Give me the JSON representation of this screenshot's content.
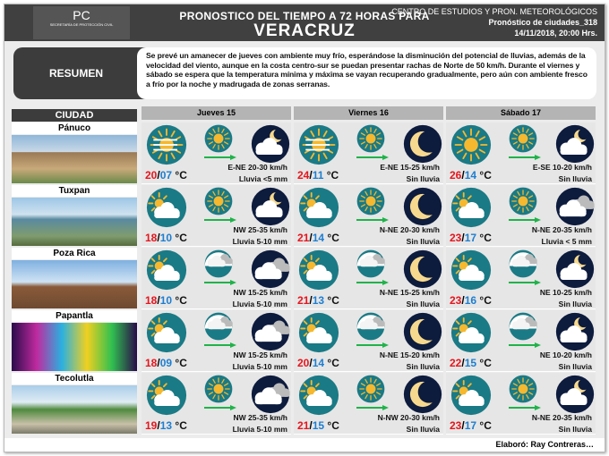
{
  "header": {
    "logo_text": "PC",
    "logo_sub": "SECRETARÍA DE PROTECCIÓN CIVIL",
    "title_line1": "PRONOSTICO DEL TIEMPO A 72 HORAS PARA",
    "title_line2": "VERACRUZ",
    "org": "CENTRO DE ESTUDIOS Y PRON. METEOROLÓGICOS",
    "product": "Pronóstico de ciudades_318",
    "datetime": "14/11/2018, 20:00 Hrs."
  },
  "resumen": {
    "label": "RESUMEN",
    "text": "Se prevé un amanecer de jueves con ambiente muy frío,  esperándose la disminución del potencial de lluvias, además de la velocidad del viento, aunque en la costa centro-sur se puedan presentar rachas de Norte de 50 km/h. Durante el viernes y sábado se espera que la temperatura mínima y máxima se vayan recuperando gradualmente, pero aún con ambiente fresco a frío por la noche y madrugada de zonas serranas."
  },
  "table": {
    "city_header": "CIUDAD",
    "temp_unit": "°C",
    "days": [
      "Jueves 15",
      "Viernes 16",
      "Sábado 17"
    ]
  },
  "colors": {
    "max": "#e8141c",
    "min": "#1d7ed1",
    "icon_day": "#1a7a85",
    "icon_night": "#0d1b3d",
    "sun": "#f5b82e",
    "wind_arrow": "#1fb34a"
  },
  "cities": [
    {
      "name": "Pánuco",
      "days": [
        {
          "max": "20",
          "min": "07",
          "icon_day": "sun-haze-icon",
          "icon_wind": "sun-icon",
          "icon_night": "night-partly-cloudy-icon",
          "wind": "E-NE 20-30 km/h",
          "rain": "Lluvia  <5 mm"
        },
        {
          "max": "24",
          "min": "11",
          "icon_day": "sun-haze-icon",
          "icon_wind": "sun-icon",
          "icon_night": "night-clear-icon",
          "wind": "E-NE 15-25 km/h",
          "rain": "Sin lluvia"
        },
        {
          "max": "26",
          "min": "14",
          "icon_day": "sun-icon",
          "icon_wind": "sun-icon",
          "icon_night": "night-partly-cloudy-icon",
          "wind": "E-SE 10-20 km/h",
          "rain": "Sin lluvia"
        }
      ]
    },
    {
      "name": "Tuxpan",
      "days": [
        {
          "max": "18",
          "min": "10",
          "icon_day": "partly-cloudy-icon",
          "icon_wind": "sun-icon",
          "icon_night": "night-partly-cloudy-icon",
          "wind": "NW 25-35 km/h",
          "rain": "Lluvia  5-10 mm"
        },
        {
          "max": "21",
          "min": "14",
          "icon_day": "partly-cloudy-icon",
          "icon_wind": "sun-icon",
          "icon_night": "night-clear-icon",
          "wind": "N-NE 20-30 km/h",
          "rain": "Sin lluvia"
        },
        {
          "max": "23",
          "min": "17",
          "icon_day": "partly-cloudy-icon",
          "icon_wind": "sun-icon",
          "icon_night": "night-cloudy-icon",
          "wind": "N-NE 20-35 km/h",
          "rain": "Lluvia  < 5 mm"
        }
      ]
    },
    {
      "name": "Poza Rica",
      "days": [
        {
          "max": "18",
          "min": "10",
          "icon_day": "partly-cloudy-icon",
          "icon_wind": "cloudy-icon",
          "icon_night": "night-cloudy-icon",
          "wind": "NW 15-25 km/h",
          "rain": "Lluvia  5-10 mm"
        },
        {
          "max": "21",
          "min": "13",
          "icon_day": "partly-cloudy-icon",
          "icon_wind": "cloudy-icon",
          "icon_night": "night-clear-icon",
          "wind": "N-NE 15-25 km/h",
          "rain": "Sin lluvia"
        },
        {
          "max": "23",
          "min": "16",
          "icon_day": "partly-cloudy-icon",
          "icon_wind": "cloudy-icon",
          "icon_night": "night-partly-cloudy-icon",
          "wind": "NE 10-25 km/h",
          "rain": "Sin lluvia"
        }
      ]
    },
    {
      "name": "Papantla",
      "days": [
        {
          "max": "18",
          "min": "09",
          "icon_day": "partly-cloudy-icon",
          "icon_wind": "cloudy-icon",
          "icon_night": "night-cloudy-icon",
          "wind": "NW 15-25 km/h",
          "rain": "Lluvia  5-10 mm"
        },
        {
          "max": "20",
          "min": "14",
          "icon_day": "partly-cloudy-icon",
          "icon_wind": "cloudy-icon",
          "icon_night": "night-clear-icon",
          "wind": "N-NE 15-20 km/h",
          "rain": "Sin lluvia"
        },
        {
          "max": "22",
          "min": "15",
          "icon_day": "partly-cloudy-icon",
          "icon_wind": "cloudy-icon",
          "icon_night": "night-partly-cloudy-icon",
          "wind": "NE 10-20 km/h",
          "rain": "Sin lluvia"
        }
      ]
    },
    {
      "name": "Tecolutla",
      "days": [
        {
          "max": "19",
          "min": "13",
          "icon_day": "partly-cloudy-icon",
          "icon_wind": "sun-icon",
          "icon_night": "night-cloudy-icon",
          "wind": "NW 25-35 km/h",
          "rain": "Lluvia  5-10 mm"
        },
        {
          "max": "21",
          "min": "15",
          "icon_day": "partly-cloudy-icon",
          "icon_wind": "sun-icon",
          "icon_night": "night-clear-icon",
          "wind": "N-NW 20-30 km/h",
          "rain": "Sin lluvia"
        },
        {
          "max": "23",
          "min": "17",
          "icon_day": "partly-cloudy-icon",
          "icon_wind": "sun-icon",
          "icon_night": "night-partly-cloudy-icon",
          "wind": "N-NE 20-35 km/h",
          "rain": "Sin lluvia"
        }
      ]
    }
  ],
  "footer": {
    "credit": "Elaboró: Ray Contreras…"
  }
}
